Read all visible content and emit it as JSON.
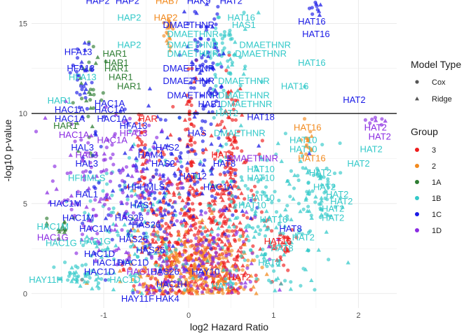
{
  "chart_data": {
    "type": "scatter",
    "title": "",
    "xlabel": "log2 Hazard Ratio",
    "ylabel": "-log10 p-value",
    "xlim": [
      -1.85,
      2.45
    ],
    "ylim": [
      -0.8,
      16.3
    ],
    "x_ticks": [
      -1,
      0,
      1,
      2
    ],
    "y_ticks": [
      0,
      5,
      10,
      15
    ],
    "grid": true,
    "reference_line": {
      "y": 10,
      "color": "#000000"
    },
    "legend_placement": "right",
    "legends": [
      {
        "title": "Model Type",
        "items": [
          {
            "label": "Cox",
            "shape": "circle"
          },
          {
            "label": "Ridge",
            "shape": "triangle"
          }
        ]
      },
      {
        "title": "Group",
        "items": [
          {
            "label": "3",
            "color": "#ee1c1c"
          },
          {
            "label": "2",
            "color": "#f28a1e"
          },
          {
            "label": "1A",
            "color": "#2e7d32"
          },
          {
            "label": "1B",
            "color": "#33c9c9"
          },
          {
            "label": "1C",
            "color": "#1a1ae6"
          },
          {
            "label": "1D",
            "color": "#8a2be2"
          }
        ]
      }
    ],
    "clusters": [
      {
        "group": "3",
        "x": 0.35,
        "y": 3.5,
        "sx": 0.22,
        "sy": 2.6,
        "n": 260
      },
      {
        "group": "3",
        "x": -0.25,
        "y": 2.8,
        "sx": 0.25,
        "sy": 2.4,
        "n": 220
      },
      {
        "group": "3",
        "x": 0.02,
        "y": 6.5,
        "sx": 0.04,
        "sy": 3.5,
        "n": 90
      },
      {
        "group": "3",
        "x": 0.5,
        "y": 7.5,
        "sx": 0.07,
        "sy": 2.8,
        "n": 70
      },
      {
        "group": "3",
        "x": -0.55,
        "y": 8.0,
        "sx": 0.03,
        "sy": 1.2,
        "n": 30
      },
      {
        "group": "3",
        "x": 1.1,
        "y": 2.5,
        "sx": 0.08,
        "sy": 0.6,
        "n": 30
      },
      {
        "group": "2",
        "x": -0.1,
        "y": 1.5,
        "sx": 0.35,
        "sy": 1.2,
        "n": 160
      },
      {
        "group": "2",
        "x": 0.3,
        "y": 1.2,
        "sx": 0.3,
        "sy": 1.0,
        "n": 120
      },
      {
        "group": "2",
        "x": -0.22,
        "y": 14.5,
        "sx": 0.03,
        "sy": 0.6,
        "n": 20
      },
      {
        "group": "2",
        "x": 1.4,
        "y": 8.5,
        "sx": 0.03,
        "sy": 0.5,
        "n": 15
      },
      {
        "group": "1A",
        "x": -1.15,
        "y": 11.5,
        "sx": 0.08,
        "sy": 1.5,
        "n": 30
      },
      {
        "group": "1A",
        "x": -1.5,
        "y": 3.7,
        "sx": 0.08,
        "sy": 0.3,
        "n": 15
      },
      {
        "group": "1B",
        "x": 0.9,
        "y": 4.0,
        "sx": 0.35,
        "sy": 2.2,
        "n": 180
      },
      {
        "group": "1B",
        "x": -0.5,
        "y": 3.5,
        "sx": 0.4,
        "sy": 2.2,
        "n": 160
      },
      {
        "group": "1B",
        "x": 1.55,
        "y": 5.5,
        "sx": 0.1,
        "sy": 1.0,
        "n": 50
      },
      {
        "group": "1B",
        "x": 0.45,
        "y": 13.0,
        "sx": 0.15,
        "sy": 1.5,
        "n": 60
      },
      {
        "group": "1B",
        "x": -1.3,
        "y": 1.0,
        "sx": 0.15,
        "sy": 0.4,
        "n": 40
      },
      {
        "group": "1C",
        "x": -0.3,
        "y": 6.0,
        "sx": 0.45,
        "sy": 2.2,
        "n": 180
      },
      {
        "group": "1C",
        "x": 0.2,
        "y": 12.5,
        "sx": 0.12,
        "sy": 1.8,
        "n": 80
      },
      {
        "group": "1C",
        "x": -1.25,
        "y": 12.0,
        "sx": 0.06,
        "sy": 1.0,
        "n": 30
      },
      {
        "group": "1C",
        "x": 1.5,
        "y": 15.8,
        "sx": 0.03,
        "sy": 0.3,
        "n": 10
      },
      {
        "group": "1D",
        "x": -0.9,
        "y": 6.0,
        "sx": 0.4,
        "sy": 2.0,
        "n": 150
      },
      {
        "group": "1D",
        "x": 0.1,
        "y": 2.0,
        "sx": 0.4,
        "sy": 1.5,
        "n": 140
      },
      {
        "group": "1D",
        "x": 2.2,
        "y": 9.6,
        "sx": 0.06,
        "sy": 0.2,
        "n": 8
      }
    ],
    "labels": [
      {
        "text": "HAP2",
        "x": -1.07,
        "y": 16.25,
        "group": "1C"
      },
      {
        "text": "HAP2",
        "x": -0.72,
        "y": 16.25,
        "group": "1C"
      },
      {
        "text": "HAB7",
        "x": -0.25,
        "y": 16.25,
        "group": "2"
      },
      {
        "text": "HAK9",
        "x": 0.12,
        "y": 16.25,
        "group": "1C"
      },
      {
        "text": "HAT2",
        "x": 0.5,
        "y": 16.25,
        "group": "1C"
      },
      {
        "text": "HAP2",
        "x": -0.7,
        "y": 15.3,
        "group": "1B"
      },
      {
        "text": "HAP2",
        "x": -0.27,
        "y": 15.3,
        "group": "2"
      },
      {
        "text": "HAT16",
        "x": 0.62,
        "y": 15.3,
        "group": "1B"
      },
      {
        "text": "HAT16",
        "x": 1.45,
        "y": 15.1,
        "group": "1C"
      },
      {
        "text": "DMAETHNR",
        "x": 0.0,
        "y": 14.9,
        "group": "1C"
      },
      {
        "text": "HAS1",
        "x": 0.65,
        "y": 14.9,
        "group": "1B"
      },
      {
        "text": "DMAETHNR",
        "x": 0.05,
        "y": 14.4,
        "group": "1B"
      },
      {
        "text": "HAT16",
        "x": 1.5,
        "y": 14.4,
        "group": "1C"
      },
      {
        "text": "HAP2",
        "x": -0.7,
        "y": 13.8,
        "group": "1B"
      },
      {
        "text": "DMAETHNR",
        "x": 0.05,
        "y": 13.8,
        "group": "1B"
      },
      {
        "text": "DMAETHNR",
        "x": 0.9,
        "y": 13.8,
        "group": "1B"
      },
      {
        "text": "HFA13",
        "x": -1.3,
        "y": 13.4,
        "group": "1C"
      },
      {
        "text": "HAR1",
        "x": -0.87,
        "y": 13.3,
        "group": "1A"
      },
      {
        "text": "DMAETHNR",
        "x": 0.05,
        "y": 13.3,
        "group": "1B"
      },
      {
        "text": "DMAETHNR",
        "x": 0.85,
        "y": 13.3,
        "group": "1B"
      },
      {
        "text": "HAR1",
        "x": -0.85,
        "y": 12.8,
        "group": "1A"
      },
      {
        "text": "HAT16",
        "x": 1.45,
        "y": 12.8,
        "group": "1B"
      },
      {
        "text": "HFA13",
        "x": -1.27,
        "y": 12.5,
        "group": "1C"
      },
      {
        "text": "HAR1",
        "x": -0.85,
        "y": 12.5,
        "group": "1A"
      },
      {
        "text": "DMAETHNR",
        "x": 0.0,
        "y": 12.5,
        "group": "1C"
      },
      {
        "text": "HFA13",
        "x": -1.25,
        "y": 12.0,
        "group": "1B"
      },
      {
        "text": "HAR1",
        "x": -0.8,
        "y": 12.0,
        "group": "1A"
      },
      {
        "text": "DMAETHNR",
        "x": 0.0,
        "y": 11.8,
        "group": "1C"
      },
      {
        "text": "DMAETHNR",
        "x": 0.65,
        "y": 11.8,
        "group": "1B"
      },
      {
        "text": "HAR1",
        "x": -0.7,
        "y": 11.5,
        "group": "1A"
      },
      {
        "text": "HAT16",
        "x": 1.25,
        "y": 11.5,
        "group": "1B"
      },
      {
        "text": "DMAETHNR",
        "x": 0.05,
        "y": 11.0,
        "group": "1C"
      },
      {
        "text": "DMAETHNR",
        "x": 0.65,
        "y": 11.0,
        "group": "1B"
      },
      {
        "text": "HAT2",
        "x": 1.95,
        "y": 10.75,
        "group": "1C"
      },
      {
        "text": "HAR1",
        "x": -1.52,
        "y": 10.7,
        "group": "1B"
      },
      {
        "text": "HAC1A",
        "x": -0.93,
        "y": 10.55,
        "group": "1C"
      },
      {
        "text": "HAB1",
        "x": 0.25,
        "y": 10.5,
        "group": "1C"
      },
      {
        "text": "DMAETHNR",
        "x": 0.68,
        "y": 10.5,
        "group": "1B"
      },
      {
        "text": "HAC1A",
        "x": -1.4,
        "y": 10.2,
        "group": "1C"
      },
      {
        "text": "HAC1A",
        "x": -0.93,
        "y": 10.2,
        "group": "1C"
      },
      {
        "text": "HAT2",
        "x": 0.45,
        "y": 10.0,
        "group": "1B"
      },
      {
        "text": "HAC1A",
        "x": -1.4,
        "y": 9.7,
        "group": "1C"
      },
      {
        "text": "HAC1A",
        "x": -0.9,
        "y": 9.7,
        "group": "1C"
      },
      {
        "text": "HAR",
        "x": -0.48,
        "y": 9.7,
        "group": "3"
      },
      {
        "text": "HAT18",
        "x": 0.85,
        "y": 9.8,
        "group": "1C"
      },
      {
        "text": "HAR1",
        "x": -1.45,
        "y": 9.3,
        "group": "1A"
      },
      {
        "text": "HFA13",
        "x": -0.65,
        "y": 9.3,
        "group": "1C"
      },
      {
        "text": "HAT16",
        "x": 1.4,
        "y": 9.2,
        "group": "2"
      },
      {
        "text": "HAT2",
        "x": 2.2,
        "y": 9.2,
        "group": "1D"
      },
      {
        "text": "HAC1A",
        "x": -1.35,
        "y": 8.8,
        "group": "1D"
      },
      {
        "text": "HFA13",
        "x": -0.65,
        "y": 8.9,
        "group": "1D"
      },
      {
        "text": "HAS",
        "x": 0.1,
        "y": 8.9,
        "group": "1C"
      },
      {
        "text": "DMAETHNR",
        "x": 0.6,
        "y": 8.9,
        "group": "1B"
      },
      {
        "text": "HAT2",
        "x": 2.25,
        "y": 8.7,
        "group": "1D"
      },
      {
        "text": "HAC1A",
        "x": -0.9,
        "y": 8.5,
        "group": "1D"
      },
      {
        "text": "HAT10",
        "x": 1.35,
        "y": 8.5,
        "group": "1B"
      },
      {
        "text": "HAL3",
        "x": -1.25,
        "y": 8.1,
        "group": "1C"
      },
      {
        "text": "HAS2",
        "x": -0.25,
        "y": 8.1,
        "group": "1C"
      },
      {
        "text": "HAT10",
        "x": 1.35,
        "y": 8.0,
        "group": "1B"
      },
      {
        "text": "HAT2",
        "x": 2.15,
        "y": 8.0,
        "group": "1B"
      },
      {
        "text": "HAL3",
        "x": -1.2,
        "y": 7.7,
        "group": "1D"
      },
      {
        "text": "HAM4",
        "x": -0.45,
        "y": 7.7,
        "group": "1C"
      },
      {
        "text": "HAT8",
        "x": 0.4,
        "y": 7.7,
        "group": "3"
      },
      {
        "text": "DMAETHNR",
        "x": 0.75,
        "y": 7.5,
        "group": "1D"
      },
      {
        "text": "HAT16",
        "x": 1.45,
        "y": 7.5,
        "group": "2"
      },
      {
        "text": "HAL3",
        "x": -1.2,
        "y": 7.2,
        "group": "1C"
      },
      {
        "text": "HAS2",
        "x": -0.3,
        "y": 7.2,
        "group": "1C"
      },
      {
        "text": "HAT8",
        "x": 0.42,
        "y": 7.2,
        "group": "1C"
      },
      {
        "text": "HAT2",
        "x": 2.0,
        "y": 7.2,
        "group": "1B"
      },
      {
        "text": "HAT10",
        "x": 0.85,
        "y": 6.9,
        "group": "1B"
      },
      {
        "text": "HAT2",
        "x": 1.55,
        "y": 6.7,
        "group": "1B"
      },
      {
        "text": "HFHMLS",
        "x": -1.2,
        "y": 6.4,
        "group": "1B"
      },
      {
        "text": "HAT12",
        "x": 0.05,
        "y": 6.5,
        "group": "1C"
      },
      {
        "text": "HAT10",
        "x": 0.85,
        "y": 6.4,
        "group": "1B"
      },
      {
        "text": "HFHMLS",
        "x": -0.5,
        "y": 5.9,
        "group": "1C"
      },
      {
        "text": "HAC1A",
        "x": 0.35,
        "y": 5.9,
        "group": "1C"
      },
      {
        "text": "HAT2",
        "x": 1.6,
        "y": 5.9,
        "group": "1B"
      },
      {
        "text": "HAL1",
        "x": -1.2,
        "y": 5.5,
        "group": "1C"
      },
      {
        "text": "HAT2",
        "x": 1.75,
        "y": 5.5,
        "group": "1B"
      },
      {
        "text": "HAT10",
        "x": 0.85,
        "y": 5.3,
        "group": "1B"
      },
      {
        "text": "HAT2",
        "x": 1.8,
        "y": 5.1,
        "group": "1B"
      },
      {
        "text": "HAC1M",
        "x": -1.45,
        "y": 5.0,
        "group": "1C"
      },
      {
        "text": "HAS1",
        "x": -0.55,
        "y": 4.9,
        "group": "1C"
      },
      {
        "text": "HAT10",
        "x": 0.75,
        "y": 4.9,
        "group": "1B"
      },
      {
        "text": "HAT2",
        "x": 1.7,
        "y": 4.7,
        "group": "1B"
      },
      {
        "text": "HAC1M",
        "x": -1.3,
        "y": 4.2,
        "group": "1C"
      },
      {
        "text": "HAS26",
        "x": -0.7,
        "y": 4.2,
        "group": "1C"
      },
      {
        "text": "HAT2",
        "x": 1.7,
        "y": 4.2,
        "group": "1B"
      },
      {
        "text": "HAT16",
        "x": 1.0,
        "y": 4.1,
        "group": "1B"
      },
      {
        "text": "HAC1M",
        "x": -1.6,
        "y": 3.7,
        "group": "1B"
      },
      {
        "text": "HAC1M",
        "x": -1.1,
        "y": 3.6,
        "group": "1C"
      },
      {
        "text": "HAS26",
        "x": -0.5,
        "y": 3.8,
        "group": "1C"
      },
      {
        "text": "HAT8",
        "x": 1.2,
        "y": 3.6,
        "group": "1C"
      },
      {
        "text": "HAC1G",
        "x": -1.6,
        "y": 3.1,
        "group": "1D"
      },
      {
        "text": "HAT2",
        "x": 1.35,
        "y": 3.1,
        "group": "1B"
      },
      {
        "text": "HAC1G",
        "x": -1.5,
        "y": 2.8,
        "group": "1B"
      },
      {
        "text": "HAC1G",
        "x": -1.1,
        "y": 2.9,
        "group": "1B"
      },
      {
        "text": "HAS26",
        "x": -0.65,
        "y": 3.0,
        "group": "1C"
      },
      {
        "text": "HAT16",
        "x": 1.05,
        "y": 2.9,
        "group": "3"
      },
      {
        "text": "HAT8",
        "x": 1.1,
        "y": 2.5,
        "group": "1B"
      },
      {
        "text": "HAC1D",
        "x": -1.05,
        "y": 2.2,
        "group": "1C"
      },
      {
        "text": "HAS26",
        "x": -0.45,
        "y": 2.4,
        "group": "1C"
      },
      {
        "text": "HAC1D",
        "x": -0.95,
        "y": 1.7,
        "group": "1C"
      },
      {
        "text": "HAC1D",
        "x": -0.65,
        "y": 1.7,
        "group": "1C"
      },
      {
        "text": "HAT8",
        "x": 0.95,
        "y": 1.7,
        "group": "1B"
      },
      {
        "text": "HAC1D",
        "x": -1.05,
        "y": 1.2,
        "group": "1C"
      },
      {
        "text": "HAC1D",
        "x": -0.55,
        "y": 1.2,
        "group": "1D"
      },
      {
        "text": "HAS26",
        "x": -0.28,
        "y": 1.2,
        "group": "1C"
      },
      {
        "text": "HAY10",
        "x": 0.2,
        "y": 1.2,
        "group": "1C"
      },
      {
        "text": "HAT2",
        "x": 0.6,
        "y": 0.9,
        "group": "3"
      },
      {
        "text": "HAY11H",
        "x": -1.68,
        "y": 0.75,
        "group": "1B"
      },
      {
        "text": "HAC1D",
        "x": -0.75,
        "y": 0.75,
        "group": "1B"
      },
      {
        "text": "HAC1H",
        "x": -0.2,
        "y": 0.5,
        "group": "1C"
      },
      {
        "text": "HAT8",
        "x": 0.4,
        "y": 0.4,
        "group": "1B"
      },
      {
        "text": "HAY11F",
        "x": -0.6,
        "y": -0.3,
        "group": "1C"
      },
      {
        "text": "HAK4",
        "x": -0.25,
        "y": -0.3,
        "group": "1C"
      }
    ]
  }
}
